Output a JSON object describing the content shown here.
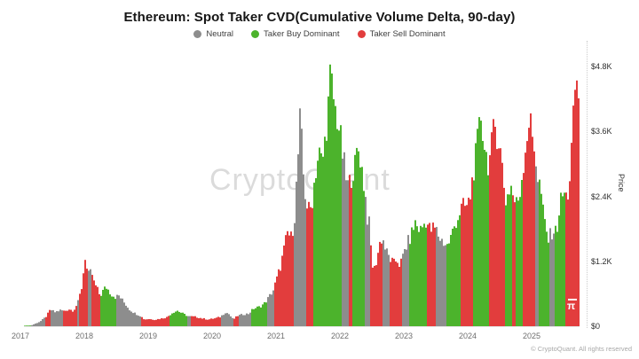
{
  "title": "Ethereum: Spot Taker CVD(Cumulative Volume Delta, 90-day)",
  "legend": [
    {
      "label": "Neutral",
      "color": "#8d8d8d",
      "state": "neutral"
    },
    {
      "label": "Taker Buy Dominant",
      "color": "#4cb32c",
      "state": "buy"
    },
    {
      "label": "Taker Sell Dominant",
      "color": "#e23d3d",
      "state": "sell"
    }
  ],
  "watermark": "CryptoQuant",
  "logo_symbol": "π",
  "footer": "© CryptoQuant. All rights reserved",
  "chart_data": {
    "type": "area",
    "title": "Ethereum: Spot Taker CVD(Cumulative Volume Delta, 90-day)",
    "xlabel": "",
    "ylabel": "Price",
    "y_ticks": [
      "$0",
      "$1.2K",
      "$2.4K",
      "$3.6K",
      "$4.8K"
    ],
    "y_tick_values": [
      0,
      1200,
      2400,
      3600,
      4800
    ],
    "ylim": [
      0,
      4800
    ],
    "x_ticks": [
      "2017",
      "2018",
      "2019",
      "2020",
      "2021",
      "2022",
      "2023",
      "2024",
      "2025"
    ],
    "x_range": [
      2017.05,
      2025.75
    ],
    "grid": false,
    "legend_position": "top",
    "colors": {
      "neutral": "#8d8d8d",
      "buy": "#4cb32c",
      "sell": "#e23d3d"
    },
    "series": [
      {
        "name": "ETH Price (USD), colored by Spot Taker CVD 90-day regime",
        "points": [
          [
            2017.06,
            10
          ],
          [
            2017.17,
            15
          ],
          [
            2017.31,
            90
          ],
          [
            2017.4,
            180
          ],
          [
            2017.47,
            320
          ],
          [
            2017.54,
            270
          ],
          [
            2017.63,
            310
          ],
          [
            2017.69,
            290
          ],
          [
            2017.76,
            330
          ],
          [
            2017.83,
            300
          ],
          [
            2017.9,
            450
          ],
          [
            2017.97,
            800
          ],
          [
            2018.01,
            1380
          ],
          [
            2018.04,
            1100
          ],
          [
            2018.08,
            950
          ],
          [
            2018.11,
            1080
          ],
          [
            2018.15,
            850
          ],
          [
            2018.21,
            700
          ],
          [
            2018.25,
            580
          ],
          [
            2018.31,
            720
          ],
          [
            2018.35,
            750
          ],
          [
            2018.42,
            620
          ],
          [
            2018.49,
            560
          ],
          [
            2018.54,
            590
          ],
          [
            2018.63,
            450
          ],
          [
            2018.71,
            320
          ],
          [
            2018.79,
            250
          ],
          [
            2018.88,
            200
          ],
          [
            2018.94,
            130
          ],
          [
            2019.01,
            140
          ],
          [
            2019.11,
            125
          ],
          [
            2019.21,
            150
          ],
          [
            2019.29,
            170
          ],
          [
            2019.39,
            270
          ],
          [
            2019.46,
            300
          ],
          [
            2019.53,
            250
          ],
          [
            2019.63,
            190
          ],
          [
            2019.74,
            180
          ],
          [
            2019.85,
            150
          ],
          [
            2019.94,
            130
          ],
          [
            2020.04,
            150
          ],
          [
            2020.13,
            180
          ],
          [
            2020.21,
            270
          ],
          [
            2020.26,
            240
          ],
          [
            2020.33,
            130
          ],
          [
            2020.4,
            200
          ],
          [
            2020.49,
            230
          ],
          [
            2020.57,
            240
          ],
          [
            2020.65,
            340
          ],
          [
            2020.74,
            370
          ],
          [
            2020.82,
            440
          ],
          [
            2020.89,
            560
          ],
          [
            2020.96,
            700
          ],
          [
            2021.01,
            900
          ],
          [
            2021.07,
            1150
          ],
          [
            2021.13,
            1500
          ],
          [
            2021.18,
            1800
          ],
          [
            2021.24,
            1700
          ],
          [
            2021.29,
            2100
          ],
          [
            2021.33,
            2900
          ],
          [
            2021.38,
            4050
          ],
          [
            2021.4,
            3600
          ],
          [
            2021.44,
            2700
          ],
          [
            2021.49,
            2300
          ],
          [
            2021.53,
            2200
          ],
          [
            2021.57,
            2450
          ],
          [
            2021.61,
            2900
          ],
          [
            2021.65,
            3200
          ],
          [
            2021.69,
            3350
          ],
          [
            2021.72,
            3100
          ],
          [
            2021.76,
            3500
          ],
          [
            2021.81,
            4100
          ],
          [
            2021.85,
            4800
          ],
          [
            2021.88,
            4600
          ],
          [
            2021.92,
            4200
          ],
          [
            2021.96,
            4000
          ],
          [
            2022.0,
            3750
          ],
          [
            2022.03,
            3400
          ],
          [
            2022.07,
            3100
          ],
          [
            2022.11,
            2700
          ],
          [
            2022.15,
            2750
          ],
          [
            2022.19,
            2950
          ],
          [
            2022.24,
            3100
          ],
          [
            2022.28,
            3450
          ],
          [
            2022.32,
            3250
          ],
          [
            2022.36,
            2900
          ],
          [
            2022.4,
            2500
          ],
          [
            2022.43,
            2100
          ],
          [
            2022.47,
            1900
          ],
          [
            2022.5,
            1200
          ],
          [
            2022.54,
            1100
          ],
          [
            2022.57,
            1250
          ],
          [
            2022.61,
            1500
          ],
          [
            2022.64,
            1700
          ],
          [
            2022.68,
            1650
          ],
          [
            2022.72,
            1450
          ],
          [
            2022.76,
            1350
          ],
          [
            2022.81,
            1250
          ],
          [
            2022.85,
            1200
          ],
          [
            2022.89,
            1300
          ],
          [
            2022.93,
            1200
          ],
          [
            2022.97,
            1250
          ],
          [
            2023.01,
            1450
          ],
          [
            2023.06,
            1600
          ],
          [
            2023.1,
            1700
          ],
          [
            2023.14,
            1850
          ],
          [
            2023.18,
            2000
          ],
          [
            2023.22,
            1900
          ],
          [
            2023.26,
            1850
          ],
          [
            2023.31,
            1950
          ],
          [
            2023.35,
            2050
          ],
          [
            2023.39,
            1900
          ],
          [
            2023.43,
            1850
          ],
          [
            2023.47,
            1900
          ],
          [
            2023.51,
            1850
          ],
          [
            2023.56,
            1700
          ],
          [
            2023.6,
            1650
          ],
          [
            2023.64,
            1600
          ],
          [
            2023.68,
            1550
          ],
          [
            2023.72,
            1650
          ],
          [
            2023.76,
            1800
          ],
          [
            2023.81,
            2000
          ],
          [
            2023.85,
            2100
          ],
          [
            2023.89,
            2250
          ],
          [
            2023.93,
            2300
          ],
          [
            2024.0,
            2300
          ],
          [
            2024.04,
            2500
          ],
          [
            2024.08,
            2900
          ],
          [
            2024.13,
            3300
          ],
          [
            2024.17,
            3700
          ],
          [
            2024.21,
            4070
          ],
          [
            2024.25,
            3600
          ],
          [
            2024.29,
            3300
          ],
          [
            2024.33,
            3100
          ],
          [
            2024.38,
            3500
          ],
          [
            2024.42,
            3900
          ],
          [
            2024.46,
            3700
          ],
          [
            2024.5,
            3500
          ],
          [
            2024.54,
            3100
          ],
          [
            2024.57,
            2700
          ],
          [
            2024.6,
            2400
          ],
          [
            2024.64,
            2600
          ],
          [
            2024.68,
            2700
          ],
          [
            2024.72,
            2450
          ],
          [
            2024.76,
            2350
          ],
          [
            2024.81,
            2500
          ],
          [
            2024.85,
            2900
          ],
          [
            2024.89,
            3300
          ],
          [
            2024.93,
            3700
          ],
          [
            2024.97,
            4000
          ],
          [
            2025.01,
            3650
          ],
          [
            2025.06,
            3350
          ],
          [
            2025.1,
            2800
          ],
          [
            2025.14,
            2700
          ],
          [
            2025.18,
            2200
          ],
          [
            2025.22,
            1900
          ],
          [
            2025.26,
            1650
          ],
          [
            2025.31,
            1800
          ],
          [
            2025.35,
            1850
          ],
          [
            2025.39,
            1800
          ],
          [
            2025.43,
            2200
          ],
          [
            2025.47,
            2500
          ],
          [
            2025.51,
            2550
          ],
          [
            2025.56,
            2450
          ],
          [
            2025.6,
            2900
          ],
          [
            2025.64,
            3700
          ],
          [
            2025.67,
            4300
          ],
          [
            2025.69,
            4850
          ],
          [
            2025.72,
            4500
          ],
          [
            2025.75,
            4400
          ],
          [
            2025.78,
            4300
          ]
        ]
      }
    ],
    "regimes": [
      [
        2017.06,
        2017.18,
        "buy"
      ],
      [
        2017.18,
        2017.38,
        "neutral"
      ],
      [
        2017.38,
        2017.47,
        "sell"
      ],
      [
        2017.47,
        2017.67,
        "neutral"
      ],
      [
        2017.67,
        2017.88,
        "sell"
      ],
      [
        2017.88,
        2017.92,
        "neutral"
      ],
      [
        2017.92,
        2018.06,
        "sell"
      ],
      [
        2018.06,
        2018.1,
        "neutral"
      ],
      [
        2018.1,
        2018.25,
        "sell"
      ],
      [
        2018.25,
        2018.51,
        "buy"
      ],
      [
        2018.51,
        2018.88,
        "neutral"
      ],
      [
        2018.88,
        2019.32,
        "sell"
      ],
      [
        2019.32,
        2019.6,
        "buy"
      ],
      [
        2019.6,
        2019.68,
        "neutral"
      ],
      [
        2019.68,
        2020.14,
        "sell"
      ],
      [
        2020.14,
        2020.32,
        "neutral"
      ],
      [
        2020.32,
        2020.42,
        "sell"
      ],
      [
        2020.42,
        2020.61,
        "neutral"
      ],
      [
        2020.61,
        2020.85,
        "buy"
      ],
      [
        2020.85,
        2020.97,
        "neutral"
      ],
      [
        2020.97,
        2021.28,
        "sell"
      ],
      [
        2021.28,
        2021.47,
        "neutral"
      ],
      [
        2021.47,
        2021.58,
        "sell"
      ],
      [
        2021.58,
        2022.03,
        "buy"
      ],
      [
        2022.03,
        2022.14,
        "neutral"
      ],
      [
        2022.14,
        2022.19,
        "sell"
      ],
      [
        2022.19,
        2022.38,
        "buy"
      ],
      [
        2022.38,
        2022.46,
        "neutral"
      ],
      [
        2022.46,
        2022.68,
        "sell"
      ],
      [
        2022.68,
        2022.78,
        "neutral"
      ],
      [
        2022.78,
        2022.96,
        "sell"
      ],
      [
        2022.96,
        2023.07,
        "neutral"
      ],
      [
        2023.07,
        2023.35,
        "buy"
      ],
      [
        2023.35,
        2023.51,
        "sell"
      ],
      [
        2023.51,
        2023.67,
        "neutral"
      ],
      [
        2023.67,
        2023.9,
        "buy"
      ],
      [
        2023.9,
        2024.08,
        "sell"
      ],
      [
        2024.08,
        2024.32,
        "buy"
      ],
      [
        2024.32,
        2024.57,
        "sell"
      ],
      [
        2024.57,
        2024.69,
        "buy"
      ],
      [
        2024.69,
        2024.76,
        "sell"
      ],
      [
        2024.76,
        2024.87,
        "buy"
      ],
      [
        2024.87,
        2025.06,
        "sell"
      ],
      [
        2025.06,
        2025.12,
        "neutral"
      ],
      [
        2025.12,
        2025.29,
        "buy"
      ],
      [
        2025.29,
        2025.36,
        "neutral"
      ],
      [
        2025.36,
        2025.53,
        "buy"
      ],
      [
        2025.53,
        2025.8,
        "sell"
      ]
    ]
  }
}
